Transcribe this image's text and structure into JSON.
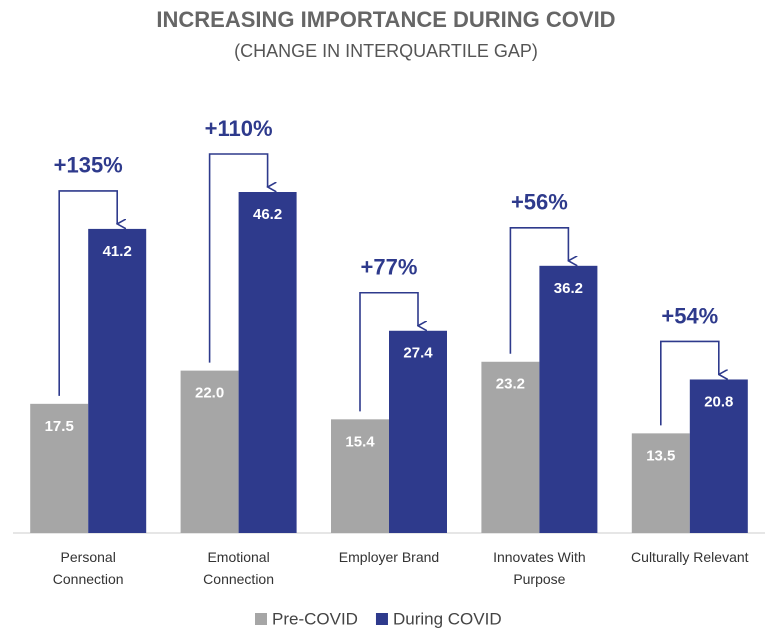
{
  "chart_data": {
    "type": "bar",
    "title": "INCREASING IMPORTANCE DURING COVID",
    "subtitle": "(CHANGE IN INTERQUARTILE GAP)",
    "categories": [
      "Personal Connection",
      "Emotional Connection",
      "Employer Brand",
      "Innovates With Purpose",
      "Culturally Relevant"
    ],
    "series": [
      {
        "name": "Pre-COVID",
        "color": "#a6a6a6",
        "values": [
          17.5,
          22.0,
          15.4,
          23.2,
          13.5
        ],
        "value_labels": [
          "17.5",
          "22.0",
          "15.4",
          "23.2",
          "13.5"
        ]
      },
      {
        "name": "During COVID",
        "color": "#2e3a8c",
        "values": [
          41.2,
          46.2,
          27.4,
          36.2,
          20.8
        ],
        "value_labels": [
          "41.2",
          "46.2",
          "27.4",
          "36.2",
          "20.8"
        ]
      }
    ],
    "annotations": [
      "+135%",
      "+110%",
      "+77%",
      "+56%",
      "+54%"
    ],
    "annotation_color": "#2e3a8c"
  }
}
